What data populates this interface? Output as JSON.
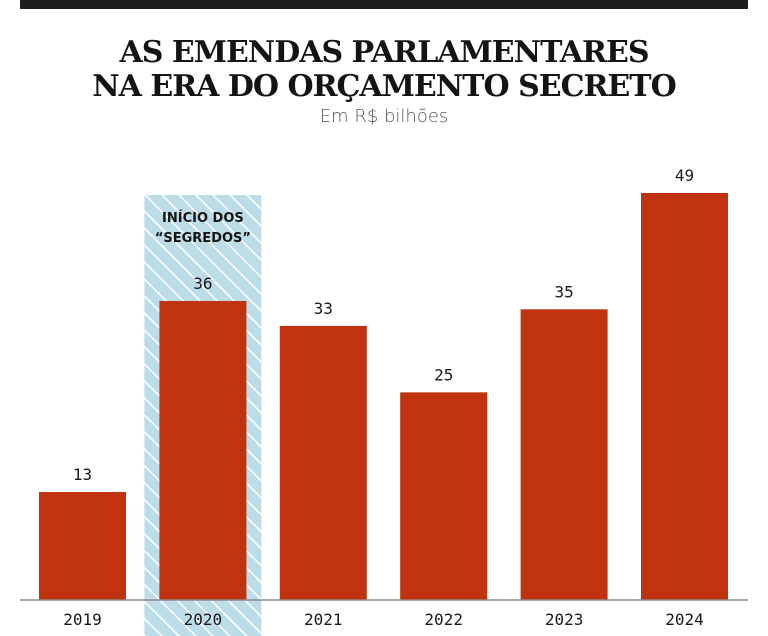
{
  "title_line1": "AS EMENDAS PARLAMENTARES",
  "title_line2": "NA ERA DO ORÇAMENTO SECRETO",
  "subtitle": "Em R$ bilhões",
  "colors": {
    "bar": "#c0330f",
    "highlight_fill": "#bcdce8",
    "highlight_stripe": "#ffffff",
    "axis": "#8a8a8a",
    "topbar": "#1c1c1c"
  },
  "chart_data": {
    "type": "bar",
    "categories": [
      "2019",
      "2020",
      "2021",
      "2022",
      "2023",
      "2024"
    ],
    "values": [
      13,
      36,
      33,
      25,
      35,
      49
    ],
    "title": "AS EMENDAS PARLAMENTARES NA ERA DO ORÇAMENTO SECRETO",
    "subtitle": "Em R$ bilhões",
    "ylim": [
      0,
      49
    ],
    "grid": false,
    "data_labels": true,
    "highlight": {
      "category": "2020",
      "label_line1": "INÍCIO DOS",
      "label_line2": "“SEGREDOS”"
    }
  }
}
